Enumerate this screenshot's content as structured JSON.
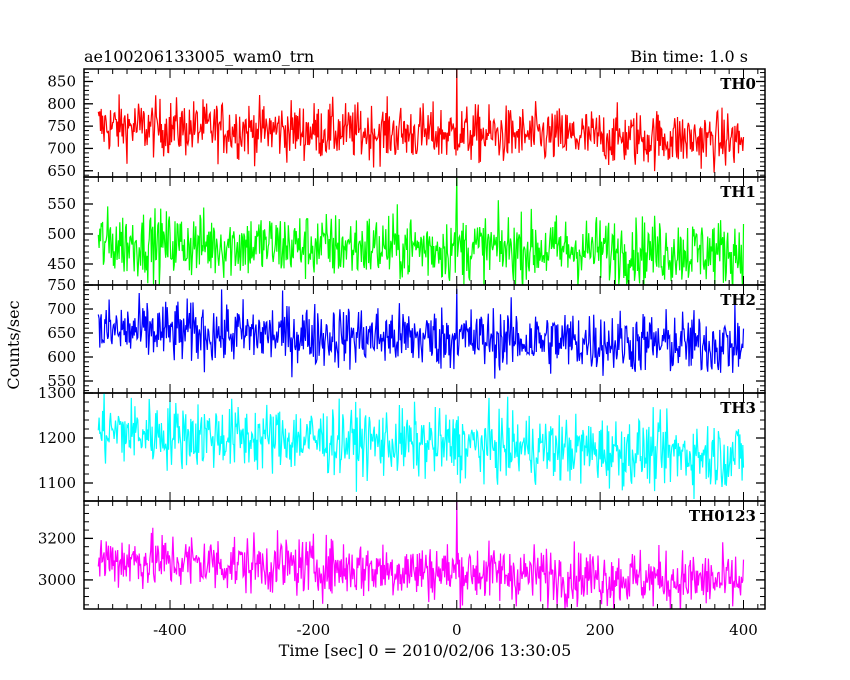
{
  "chart_data": {
    "type": "line",
    "title_left": "ae100206133005_wam0_trn",
    "title_right": "Bin time: 1.0 s",
    "xlabel": "Time [sec] 0 = 2010/02/06 13:30:05",
    "ylabel": "Counts/sec",
    "xlim": [
      -520,
      430
    ],
    "x_range": [
      -500,
      400
    ],
    "x_ticks": [
      -400,
      -200,
      0,
      200,
      400
    ],
    "grid": false,
    "series": [
      {
        "name": "TH0",
        "color": "#ff0000",
        "ylim": [
          636,
          878
        ],
        "y_ticks": [
          650,
          700,
          750,
          800,
          850
        ],
        "baseline_start": 750,
        "baseline_end": 718,
        "noise": 32,
        "spike_at": 0,
        "spike_value": 878
      },
      {
        "name": "TH1",
        "color": "#00ff00",
        "ylim": [
          415,
          595
        ],
        "y_ticks": [
          450,
          500,
          550
        ],
        "baseline_start": 485,
        "baseline_end": 470,
        "noise": 28,
        "spike_at": 0,
        "spike_value": 595
      },
      {
        "name": "TH2",
        "color": "#0000ff",
        "ylim": [
          525,
          750
        ],
        "y_ticks": [
          550,
          600,
          650,
          700,
          750
        ],
        "baseline_start": 655,
        "baseline_end": 625,
        "noise": 33,
        "spike_at": 0,
        "spike_value": 742
      },
      {
        "name": "TH3",
        "color": "#00ffff",
        "ylim": [
          1060,
          1300
        ],
        "y_ticks": [
          1100,
          1200,
          1300
        ],
        "baseline_start": 1215,
        "baseline_end": 1160,
        "noise": 38,
        "spike_at": 0,
        "spike_value": 1240
      },
      {
        "name": "TH0123",
        "color": "#ff00ff",
        "ylim": [
          2860,
          3380
        ],
        "y_ticks": [
          3000,
          3200
        ],
        "baseline_start": 3100,
        "baseline_end": 2990,
        "noise": 70,
        "spike_at": 0,
        "spike_value": 3375
      }
    ]
  }
}
